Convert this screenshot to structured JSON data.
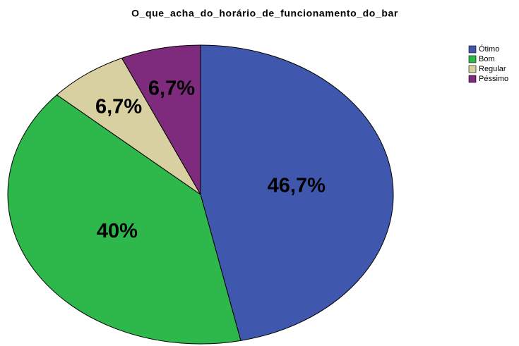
{
  "chart_data": {
    "type": "pie",
    "title": "O_que_acha_do_horário_de_funcionamento_do_bar",
    "categories": [
      "Ótimo",
      "Bom",
      "Regular",
      "Péssimo"
    ],
    "values": [
      46.7,
      40,
      6.7,
      6.7
    ],
    "value_labels": [
      "46,7%",
      "40%",
      "6,7%",
      "6,7%"
    ],
    "colors": [
      "#3f58ad",
      "#2eb84b",
      "#d9d0a2",
      "#7e2b7d"
    ],
    "legend": "top-right"
  }
}
